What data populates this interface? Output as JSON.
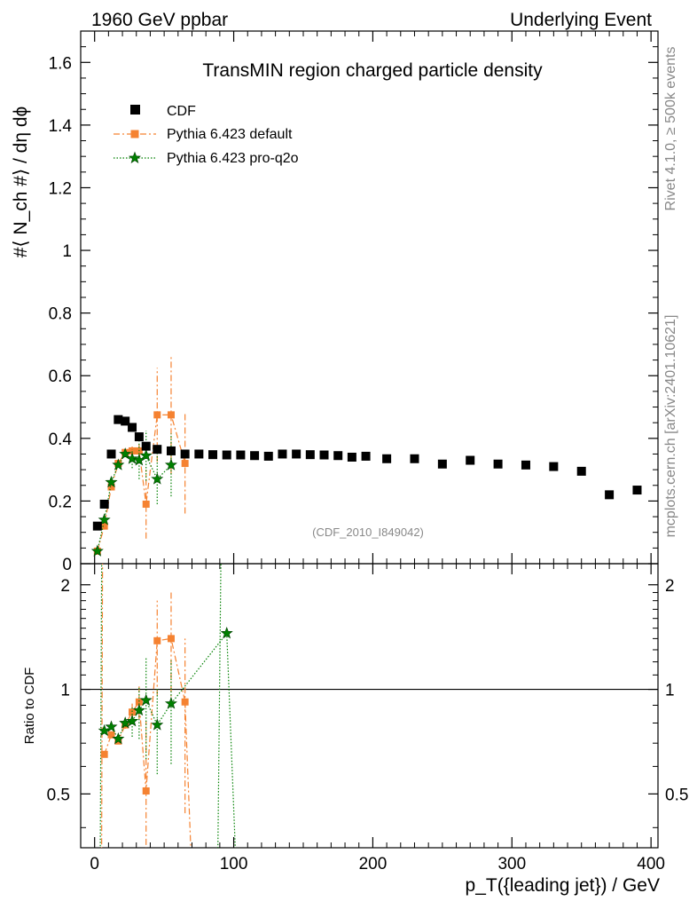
{
  "header": {
    "left": "1960 GeV ppbar",
    "right": "Underlying Event"
  },
  "side_labels": {
    "rivet": "Rivet 4.1.0, ≥ 500k events",
    "mcplots": "mcplots.cern.ch [arXiv:2401.10621]"
  },
  "chart_data": [
    {
      "type": "scatter",
      "panel": "main",
      "title": "TransMIN region charged particle density",
      "ylabel": "#⟨ N_ch #⟩ / dη dϕ",
      "xlabel": "p_T({leading jet}) / GeV",
      "watermark": "(CDF_2010_I849042)",
      "xlim": [
        -10,
        405
      ],
      "ylim": [
        0,
        1.7
      ],
      "yticks": [
        0,
        0.2,
        0.4,
        0.6,
        0.8,
        1,
        1.2,
        1.4,
        1.6
      ],
      "ytick_labels": [
        "0",
        "0.2",
        "0.4",
        "0.6",
        "0.8",
        "1",
        "1.2",
        "1.4",
        "1.6"
      ],
      "legend_position": "top-left",
      "series": [
        {
          "name": "CDF",
          "color": "#000000",
          "marker": "square",
          "x": [
            2,
            7,
            12,
            17,
            22,
            27,
            32,
            37,
            45,
            55,
            65,
            75,
            85,
            95,
            105,
            115,
            125,
            135,
            145,
            155,
            165,
            175,
            185,
            195,
            210,
            230,
            250,
            270,
            290,
            310,
            330,
            350,
            370,
            390
          ],
          "y": [
            0.12,
            0.19,
            0.35,
            0.46,
            0.455,
            0.435,
            0.405,
            0.375,
            0.365,
            0.36,
            0.35,
            0.35,
            0.348,
            0.347,
            0.347,
            0.345,
            0.343,
            0.35,
            0.35,
            0.348,
            0.347,
            0.345,
            0.34,
            0.343,
            0.335,
            0.335,
            0.318,
            0.33,
            0.318,
            0.315,
            0.31,
            0.295,
            0.22,
            0.235
          ]
        },
        {
          "name": "Pythia 6.423 default",
          "color": "#f58231",
          "marker": "square",
          "line": "dash-dot",
          "x": [
            2,
            7,
            12,
            17,
            22,
            27,
            32,
            37,
            45,
            55,
            65
          ],
          "y": [
            0.04,
            0.12,
            0.245,
            0.32,
            0.355,
            0.36,
            0.36,
            0.19,
            0.475,
            0.475,
            0.32
          ],
          "yerr": [
            0.0,
            0.0,
            0.0,
            0.0,
            0.01,
            0.02,
            0.04,
            0.11,
            0.15,
            0.19,
            0.16
          ]
        },
        {
          "name": "Pythia 6.423 pro-q2o",
          "color": "#008000",
          "marker": "star",
          "line": "dotted",
          "x": [
            2,
            7,
            12,
            17,
            22,
            27,
            32,
            37,
            45,
            55
          ],
          "y": [
            0.04,
            0.14,
            0.26,
            0.315,
            0.35,
            0.335,
            0.33,
            0.345,
            0.27,
            0.315
          ],
          "yerr": [
            0.0,
            0.0,
            0.0,
            0.0,
            0.01,
            0.03,
            0.06,
            0.08,
            0.08,
            0.1
          ]
        }
      ]
    },
    {
      "type": "scatter",
      "panel": "ratio",
      "ylabel": "Ratio to CDF",
      "xlabel": "p_T({leading jet}) / GeV",
      "xlim": [
        -10,
        405
      ],
      "ylim": [
        0.35,
        2.3
      ],
      "yticks": [
        0.5,
        1,
        2
      ],
      "ytick_labels": [
        "0.5",
        "1",
        "2"
      ],
      "xticks": [
        0,
        100,
        200,
        300,
        400
      ],
      "xtick_labels": [
        "0",
        "100",
        "200",
        "300",
        "400"
      ],
      "reference_line": 1,
      "series": [
        {
          "name": "Pythia 6.423 default",
          "color": "#f58231",
          "marker": "square",
          "x": [
            7,
            12,
            17,
            22,
            27,
            32,
            37,
            45,
            55,
            65
          ],
          "y": [
            0.65,
            0.74,
            0.71,
            0.79,
            0.86,
            0.92,
            0.51,
            1.38,
            1.4,
            0.92
          ],
          "yerr": [
            0.0,
            0.0,
            0.0,
            0.02,
            0.05,
            0.1,
            0.3,
            0.42,
            0.5,
            0.48
          ]
        },
        {
          "name": "Pythia 6.423 pro-q2o",
          "color": "#008000",
          "marker": "star",
          "x": [
            7,
            12,
            17,
            22,
            27,
            32,
            37,
            45,
            55,
            95
          ],
          "y": [
            0.76,
            0.78,
            0.72,
            0.8,
            0.81,
            0.87,
            0.93,
            0.79,
            0.91,
            1.45
          ],
          "yerr": [
            0.0,
            0.0,
            0.0,
            0.02,
            0.08,
            0.15,
            0.3,
            0.22,
            0.3,
            0.0
          ]
        }
      ]
    }
  ]
}
